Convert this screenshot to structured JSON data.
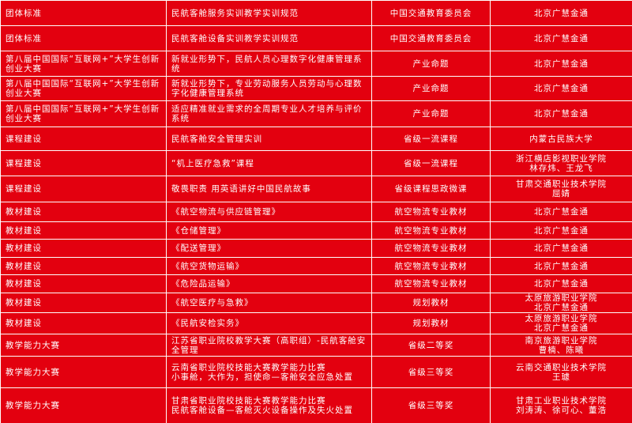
{
  "table": {
    "rows": [
      [
        "团体标准",
        "民航客舱服务实训教学实训规范",
        "中国交通教育委员会",
        "北京广慧金通"
      ],
      [
        "团体标准",
        "民航客舱设备实训教学实训规范",
        "中国交通教育委员会",
        "北京广慧金通"
      ],
      [
        "第八届中国国际“互联网+”大学生创新创业大赛",
        "新就业形势下，民航人员心理数字化健康管理系统",
        "产业命题",
        "北京广慧金通"
      ],
      [
        "第八届中国国际“互联网+”大学生创新创业大赛",
        "新就业形势下，专业劳动服务人员劳动与心理数字化健康管理系统",
        "产业命题",
        "北京广慧金通"
      ],
      [
        "第八届中国国际“互联网+”大学生创新创业大赛",
        "适应精准就业需求的全周期专业人才培养与评价系统",
        "产业命题",
        "北京广慧金通"
      ],
      [
        "课程建设",
        "民航客舱安全管理实训",
        "省级一流课程",
        "内蒙古民族大学"
      ],
      [
        "课程建设",
        "“机上医疗急救”课程",
        "省级一流课程",
        [
          "浙江横店影视职业学院",
          "林存炜、王龙飞"
        ]
      ],
      [
        "课程建设",
        "敬畏职责 用英语讲好中国民航故事",
        "省级课程思政微课",
        [
          "甘肃交通职业技术学院",
          "屈婧"
        ]
      ],
      [
        "教材建设",
        "《航空物流与供应链管理》",
        "航空物流专业教材",
        "北京广慧金通"
      ],
      [
        "教材建设",
        "《仓储管理》",
        "航空物流专业教材",
        "北京广慧金通"
      ],
      [
        "教材建设",
        "《配送管理》",
        "航空物流专业教材",
        "北京广慧金通"
      ],
      [
        "教材建设",
        "《航空货物运输》",
        "航空物流专业教材",
        "北京广慧金通"
      ],
      [
        "教材建设",
        "《危险品运输》",
        "航空物流专业教材",
        "北京广慧金通"
      ],
      [
        "教材建设",
        "《航空医疗与急救》",
        "规划教材",
        [
          "太原旅游职业学院",
          "北京广慧金通"
        ]
      ],
      [
        "教材建设",
        "《民航安检实务》",
        "规划教材",
        [
          "太原旅游职业学院",
          "北京广慧金通"
        ]
      ],
      [
        "教学能力大赛",
        "江苏省职业院校教学大赛（高职组）-民航客舱安全管理",
        "省级二等奖",
        [
          "南京旅游职业学院",
          "曹楠、陈曦"
        ]
      ],
      [
        "教学能力大赛",
        [
          "云南省职业院校技能大赛教学能力比赛",
          "小事舱，大作为，担使命—客舱安全应急处置"
        ],
        "省级三等奖",
        [
          "云南交通职业技术学院",
          "王璩"
        ]
      ],
      [
        "教学能力大赛",
        [
          "甘肃省职业院校技能大赛教学能力比赛",
          "民航客舱设备—客舱灭火设备操作及失火处置"
        ],
        "省级三等奖",
        [
          "甘肃工业职业技术学院",
          "刘涛涛、徐可心、董浩"
        ]
      ]
    ]
  }
}
